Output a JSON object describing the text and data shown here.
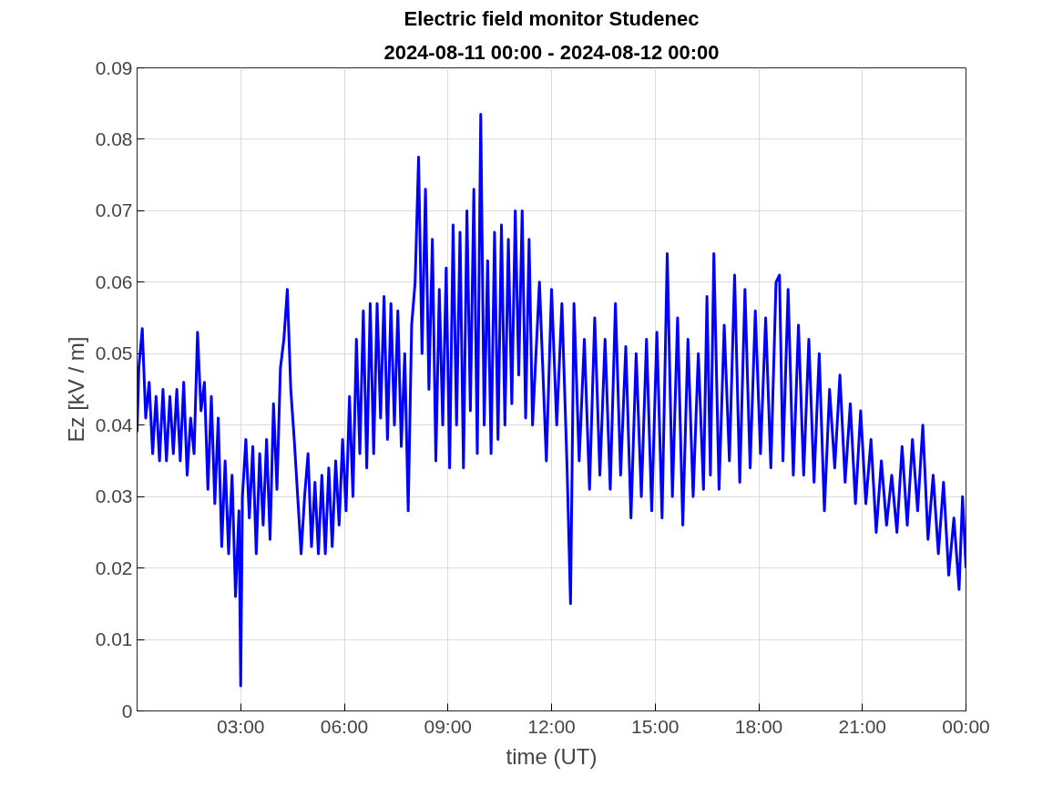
{
  "chart_data": {
    "type": "line",
    "title": "Electric field monitor Studenec",
    "subtitle": "2024-08-11 00:00 - 2024-08-12 00:00",
    "xlabel": "time (UT)",
    "ylabel": "Ez [kV / m]",
    "xlim": [
      0,
      24
    ],
    "ylim": [
      0,
      0.09
    ],
    "xticks": [
      {
        "value": 3,
        "label": "03:00"
      },
      {
        "value": 6,
        "label": "06:00"
      },
      {
        "value": 9,
        "label": "09:00"
      },
      {
        "value": 12,
        "label": "12:00"
      },
      {
        "value": 15,
        "label": "15:00"
      },
      {
        "value": 18,
        "label": "18:00"
      },
      {
        "value": 21,
        "label": "21:00"
      },
      {
        "value": 24,
        "label": "00:00"
      }
    ],
    "yticks": [
      0,
      0.01,
      0.02,
      0.03,
      0.04,
      0.05,
      0.06,
      0.07,
      0.08,
      0.09
    ],
    "grid": true,
    "line_style": "solid",
    "series": [
      {
        "color": "#0000ff",
        "x": [
          0.0,
          0.05,
          0.15,
          0.25,
          0.35,
          0.45,
          0.55,
          0.65,
          0.75,
          0.85,
          0.95,
          1.05,
          1.15,
          1.25,
          1.35,
          1.45,
          1.55,
          1.65,
          1.75,
          1.85,
          1.95,
          2.05,
          2.15,
          2.25,
          2.35,
          2.45,
          2.55,
          2.65,
          2.75,
          2.85,
          2.95,
          3.0,
          3.05,
          3.15,
          3.25,
          3.35,
          3.45,
          3.55,
          3.65,
          3.75,
          3.85,
          3.95,
          4.05,
          4.15,
          4.25,
          4.35,
          4.45,
          4.55,
          4.65,
          4.75,
          4.85,
          4.95,
          5.05,
          5.15,
          5.25,
          5.35,
          5.45,
          5.55,
          5.65,
          5.75,
          5.85,
          5.95,
          6.05,
          6.15,
          6.25,
          6.35,
          6.45,
          6.55,
          6.65,
          6.75,
          6.85,
          6.95,
          7.05,
          7.15,
          7.25,
          7.35,
          7.45,
          7.55,
          7.65,
          7.75,
          7.85,
          7.95,
          8.05,
          8.15,
          8.25,
          8.35,
          8.45,
          8.55,
          8.65,
          8.75,
          8.85,
          8.95,
          9.05,
          9.15,
          9.25,
          9.35,
          9.45,
          9.55,
          9.65,
          9.75,
          9.85,
          9.95,
          10.05,
          10.15,
          10.25,
          10.35,
          10.45,
          10.55,
          10.65,
          10.75,
          10.85,
          10.95,
          11.05,
          11.15,
          11.25,
          11.35,
          11.45,
          11.65,
          11.85,
          12.0,
          12.15,
          12.3,
          12.45,
          12.55,
          12.65,
          12.8,
          12.95,
          13.1,
          13.25,
          13.4,
          13.55,
          13.7,
          13.85,
          14.0,
          14.15,
          14.3,
          14.45,
          14.6,
          14.75,
          14.9,
          15.05,
          15.2,
          15.35,
          15.5,
          15.65,
          15.8,
          15.95,
          16.1,
          16.25,
          16.4,
          16.5,
          16.6,
          16.7,
          16.85,
          17.0,
          17.15,
          17.3,
          17.45,
          17.6,
          17.75,
          17.9,
          18.05,
          18.2,
          18.35,
          18.5,
          18.6,
          18.7,
          18.85,
          19.0,
          19.15,
          19.3,
          19.45,
          19.6,
          19.75,
          19.9,
          20.05,
          20.2,
          20.35,
          20.5,
          20.65,
          20.8,
          20.95,
          21.1,
          21.25,
          21.4,
          21.55,
          21.7,
          21.85,
          22.0,
          22.15,
          22.3,
          22.45,
          22.6,
          22.75,
          22.9,
          23.05,
          23.2,
          23.35,
          23.5,
          23.65,
          23.8,
          23.9,
          24.0
        ],
        "values": [
          0.039,
          0.048,
          0.0535,
          0.041,
          0.046,
          0.036,
          0.044,
          0.035,
          0.045,
          0.035,
          0.044,
          0.036,
          0.045,
          0.035,
          0.046,
          0.033,
          0.041,
          0.036,
          0.053,
          0.042,
          0.046,
          0.031,
          0.044,
          0.029,
          0.041,
          0.023,
          0.035,
          0.022,
          0.033,
          0.016,
          0.028,
          0.0035,
          0.03,
          0.038,
          0.027,
          0.037,
          0.022,
          0.036,
          0.026,
          0.038,
          0.024,
          0.043,
          0.031,
          0.048,
          0.052,
          0.059,
          0.045,
          0.038,
          0.03,
          0.022,
          0.03,
          0.036,
          0.023,
          0.032,
          0.022,
          0.033,
          0.022,
          0.034,
          0.023,
          0.035,
          0.026,
          0.038,
          0.028,
          0.044,
          0.03,
          0.052,
          0.036,
          0.056,
          0.034,
          0.057,
          0.036,
          0.057,
          0.041,
          0.058,
          0.038,
          0.057,
          0.04,
          0.056,
          0.037,
          0.05,
          0.028,
          0.054,
          0.06,
          0.0775,
          0.05,
          0.073,
          0.045,
          0.066,
          0.035,
          0.059,
          0.04,
          0.062,
          0.034,
          0.068,
          0.04,
          0.067,
          0.034,
          0.07,
          0.042,
          0.073,
          0.036,
          0.0835,
          0.04,
          0.063,
          0.036,
          0.067,
          0.038,
          0.068,
          0.04,
          0.066,
          0.043,
          0.07,
          0.047,
          0.07,
          0.041,
          0.066,
          0.04,
          0.06,
          0.035,
          0.059,
          0.04,
          0.057,
          0.034,
          0.015,
          0.057,
          0.035,
          0.052,
          0.031,
          0.055,
          0.033,
          0.052,
          0.031,
          0.057,
          0.033,
          0.051,
          0.027,
          0.05,
          0.03,
          0.052,
          0.028,
          0.053,
          0.027,
          0.064,
          0.03,
          0.055,
          0.026,
          0.052,
          0.03,
          0.05,
          0.031,
          0.058,
          0.033,
          0.064,
          0.031,
          0.054,
          0.035,
          0.061,
          0.032,
          0.059,
          0.034,
          0.056,
          0.036,
          0.055,
          0.034,
          0.06,
          0.061,
          0.035,
          0.059,
          0.033,
          0.054,
          0.033,
          0.052,
          0.032,
          0.05,
          0.028,
          0.045,
          0.034,
          0.047,
          0.032,
          0.043,
          0.029,
          0.042,
          0.029,
          0.038,
          0.025,
          0.035,
          0.026,
          0.033,
          0.025,
          0.037,
          0.026,
          0.038,
          0.028,
          0.04,
          0.024,
          0.033,
          0.022,
          0.032,
          0.019,
          0.027,
          0.017,
          0.03,
          0.02
        ]
      }
    ]
  }
}
